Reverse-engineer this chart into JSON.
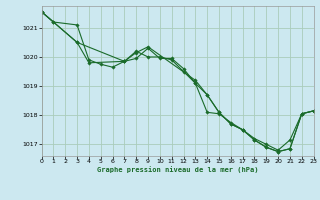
{
  "title": "Graphe pression niveau de la mer (hPa)",
  "background_color": "#cce8f0",
  "grid_color": "#aaccbb",
  "line_color": "#1a6b2a",
  "x_min": 0,
  "x_max": 23,
  "y_min": 1016.6,
  "y_max": 1021.75,
  "yticks": [
    1017,
    1018,
    1019,
    1020,
    1021
  ],
  "xticks": [
    0,
    1,
    2,
    3,
    4,
    5,
    6,
    7,
    8,
    9,
    10,
    11,
    12,
    13,
    14,
    15,
    16,
    17,
    18,
    19,
    20,
    21,
    22,
    23
  ],
  "series1": {
    "x": [
      0,
      1,
      3,
      4,
      5,
      6,
      7,
      8,
      9,
      10,
      11,
      12,
      13,
      14,
      15,
      16,
      17,
      18,
      19,
      20,
      21,
      22,
      23
    ],
    "y": [
      1021.55,
      1021.2,
      1021.1,
      1019.9,
      1019.75,
      1019.65,
      1019.85,
      1019.95,
      1020.3,
      1019.95,
      1019.95,
      1019.6,
      1019.1,
      1018.7,
      1018.1,
      1017.7,
      1017.5,
      1017.2,
      1017.0,
      1016.8,
      1017.15,
      1018.05,
      1018.15
    ]
  },
  "series2": {
    "x": [
      0,
      3,
      4,
      7,
      8,
      9,
      10,
      11,
      12,
      13,
      14,
      15,
      16,
      17,
      18,
      19,
      20,
      21,
      22,
      23
    ],
    "y": [
      1021.55,
      1020.5,
      1019.8,
      1019.85,
      1020.2,
      1020.0,
      1020.0,
      1019.9,
      1019.5,
      1019.1,
      1018.1,
      1018.05,
      1017.75,
      1017.5,
      1017.15,
      1016.9,
      1016.75,
      1016.85,
      1018.05,
      1018.15
    ]
  },
  "series3": {
    "x": [
      0,
      1,
      3,
      7,
      8,
      9,
      13,
      14,
      15,
      16,
      17,
      18,
      19,
      20,
      21,
      22,
      23
    ],
    "y": [
      1021.55,
      1021.2,
      1020.5,
      1019.85,
      1020.15,
      1020.35,
      1019.2,
      1018.7,
      1018.1,
      1017.7,
      1017.5,
      1017.15,
      1016.9,
      1016.75,
      1016.85,
      1018.05,
      1018.15
    ]
  }
}
